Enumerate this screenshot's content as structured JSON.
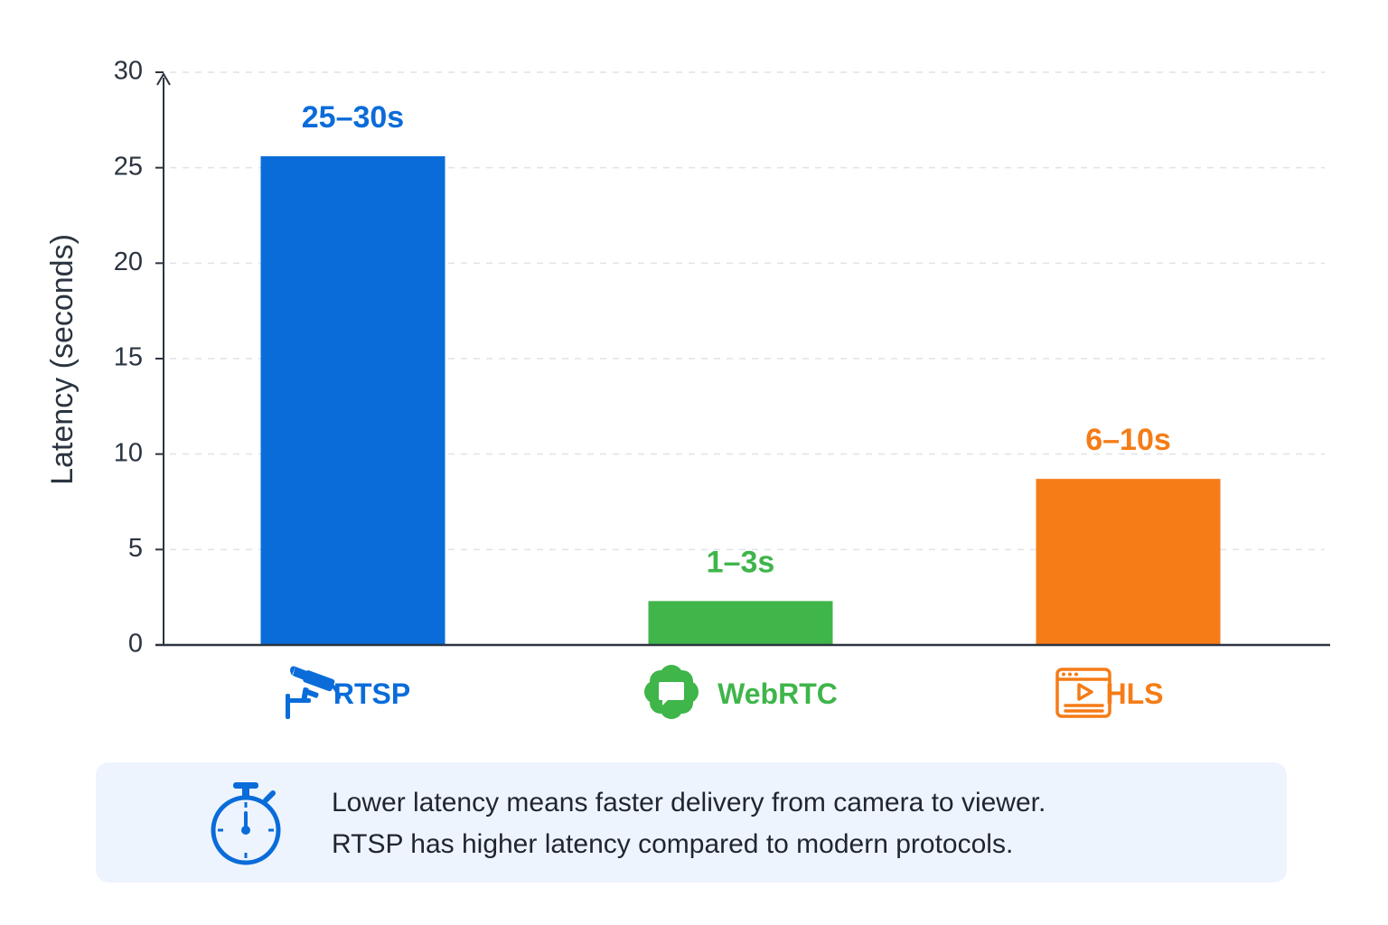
{
  "chart_data": {
    "type": "bar",
    "categories": [
      "RTSP",
      "WebRTC",
      "HLS"
    ],
    "values": [
      25.6,
      2.3,
      8.7
    ],
    "data_labels": [
      "25–30s",
      "1–3s",
      "6–10s"
    ],
    "colors": [
      "#0a6cd9",
      "#3fb54a",
      "#f57c17"
    ],
    "category_icons": [
      "security-camera-icon",
      "chat-bubble-icon",
      "video-player-icon"
    ],
    "title": "",
    "xlabel": "",
    "ylabel": "Latency (seconds)",
    "ylim": [
      0,
      30
    ],
    "yticks": [
      0,
      5,
      10,
      15,
      20,
      25,
      30
    ],
    "grid": true,
    "legend": "none"
  },
  "note": {
    "icon": "stopwatch-icon",
    "line1": "Lower latency means faster delivery from camera to viewer.",
    "line2": "RTSP has higher latency compared to modern protocols."
  }
}
